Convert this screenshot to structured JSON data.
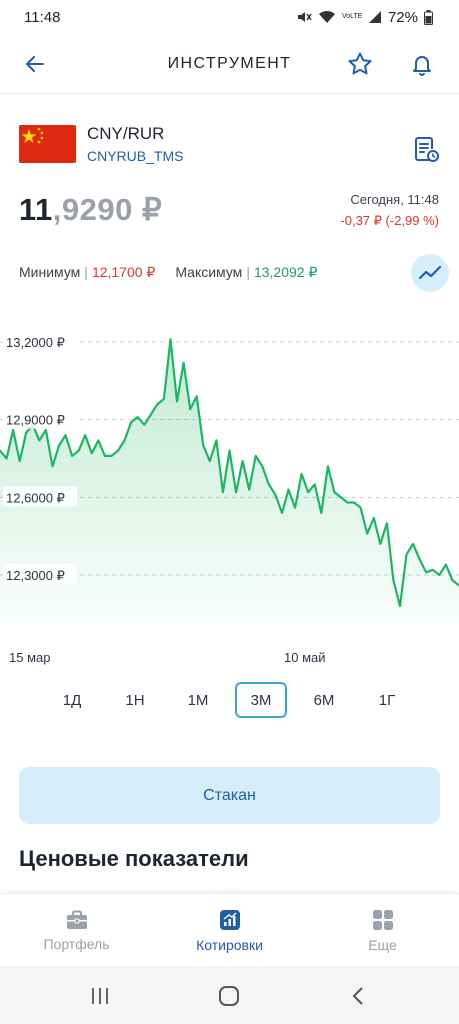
{
  "status_bar": {
    "time": "11:48",
    "battery": "72%",
    "network_label": "VoLTE"
  },
  "header": {
    "title": "ИНСТРУМЕНТ"
  },
  "instrument": {
    "name": "CNY/RUR",
    "code": "CNYRUB_TMS"
  },
  "price": {
    "integer_part": "11",
    "fraction_part": ",9290 ₽",
    "time": "Сегодня, 11:48",
    "change": "-0,37 ₽ (-2,99 %)"
  },
  "range": {
    "min_label": "Минимум",
    "min_value": "12,1700 ₽",
    "max_label": "Максимум",
    "max_value": "13,2092 ₽"
  },
  "chart_data": {
    "type": "area",
    "y_tick_labels": [
      "13,2000 ₽",
      "12,9000 ₽",
      "12,6000 ₽",
      "12,3000 ₽"
    ],
    "y_ticks": [
      13.2,
      12.9,
      12.6,
      12.3
    ],
    "x_tick_labels": [
      "15 мар",
      "10 май"
    ],
    "ylim": [
      12.1,
      13.3
    ],
    "grid": true,
    "series_color": "#1db562",
    "values": [
      12.78,
      12.75,
      12.86,
      12.74,
      12.85,
      12.88,
      12.82,
      12.86,
      12.72,
      12.8,
      12.84,
      12.76,
      12.78,
      12.84,
      12.77,
      12.82,
      12.76,
      12.76,
      12.78,
      12.82,
      12.89,
      12.91,
      12.88,
      12.92,
      12.96,
      12.98,
      13.21,
      12.97,
      13.12,
      12.94,
      12.99,
      12.8,
      12.74,
      12.82,
      12.62,
      12.78,
      12.62,
      12.74,
      12.63,
      12.76,
      12.72,
      12.65,
      12.61,
      12.54,
      12.63,
      12.56,
      12.69,
      12.62,
      12.65,
      12.54,
      12.72,
      12.62,
      12.6,
      12.58,
      12.58,
      12.56,
      12.46,
      12.52,
      12.42,
      12.5,
      12.28,
      12.18,
      12.38,
      12.42,
      12.36,
      12.31,
      12.32,
      12.3,
      12.34,
      12.28,
      12.26
    ]
  },
  "periods": [
    {
      "label": "1Д",
      "active": false
    },
    {
      "label": "1Н",
      "active": false
    },
    {
      "label": "1М",
      "active": false
    },
    {
      "label": "3М",
      "active": true
    },
    {
      "label": "6М",
      "active": false
    },
    {
      "label": "1Г",
      "active": false
    }
  ],
  "order_book_button": "Стакан",
  "section_title": "Ценовые показатели",
  "tabs": [
    {
      "label": "Портфель",
      "icon": "briefcase-icon",
      "active": false
    },
    {
      "label": "Котировки",
      "icon": "chart-icon",
      "active": true
    },
    {
      "label": "Еще",
      "icon": "grid-icon",
      "active": false
    }
  ],
  "colors": {
    "accent": "#1f5fa8",
    "negative": "#d9382e",
    "positive": "#1aa05b",
    "highlight": "#3aa3d6"
  }
}
